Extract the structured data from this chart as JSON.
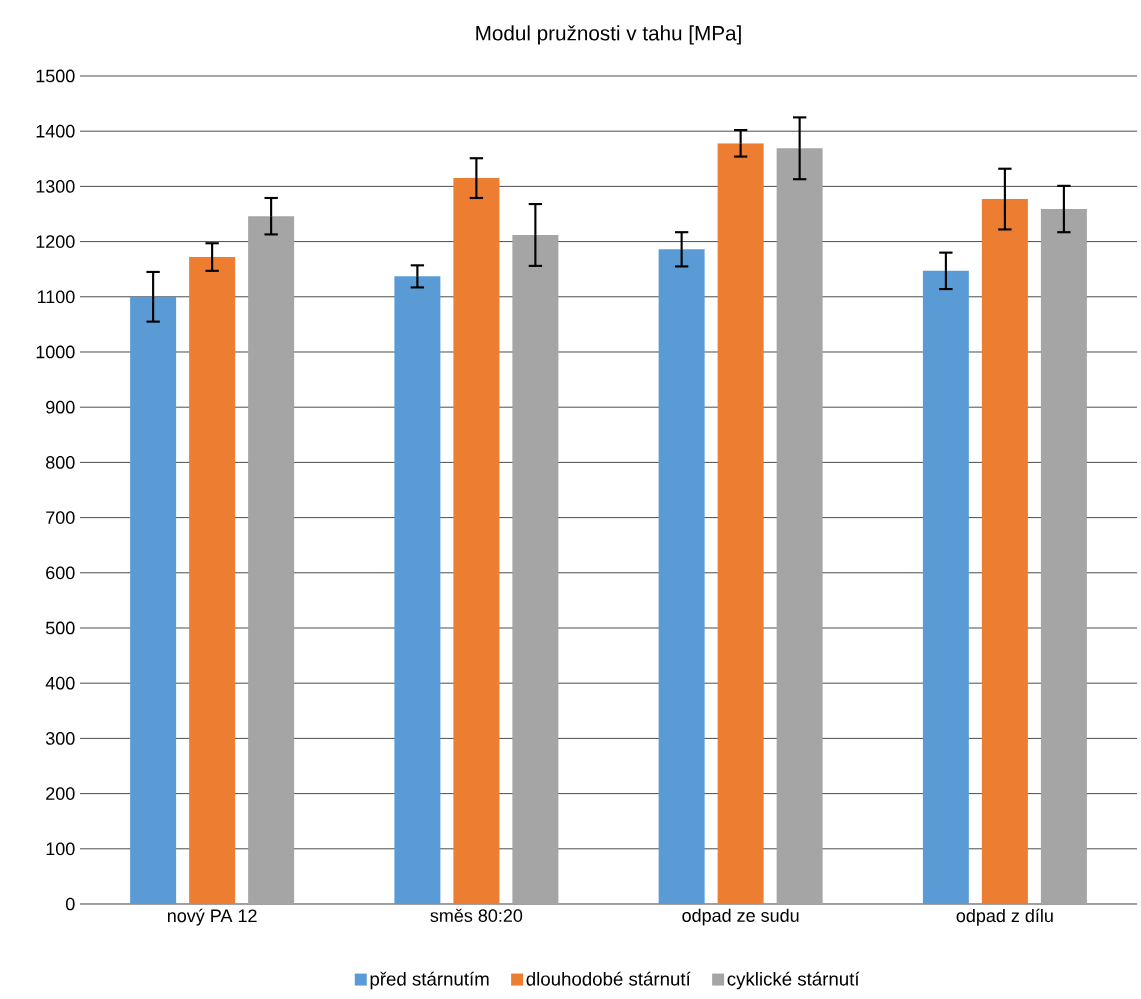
{
  "chart_data": {
    "type": "bar",
    "title": "Modul pružnosti v tahu [MPa]",
    "categories": [
      "nový PA 12",
      "směs 80:20",
      "odpad ze sudu",
      "odpad z dílu"
    ],
    "series": [
      {
        "name": "před stárnutím",
        "color": "#5b9bd5",
        "values": [
          1100,
          1137,
          1186,
          1147
        ],
        "errors": [
          45,
          20,
          31,
          33
        ]
      },
      {
        "name": "dlouhodobé stárnutí",
        "color": "#ed7d31",
        "values": [
          1172,
          1315,
          1378,
          1277
        ],
        "errors": [
          25,
          36,
          24,
          55
        ]
      },
      {
        "name": "cyklické stárnutí",
        "color": "#a5a5a5",
        "values": [
          1246,
          1212,
          1369,
          1259
        ],
        "errors": [
          33,
          56,
          56,
          42
        ]
      }
    ],
    "ylim": [
      0,
      1500
    ],
    "yticks": [
      0,
      100,
      200,
      300,
      400,
      500,
      600,
      700,
      800,
      900,
      1000,
      1100,
      1200,
      1300,
      1400,
      1500
    ],
    "grid": "y",
    "legend": "bottom"
  }
}
